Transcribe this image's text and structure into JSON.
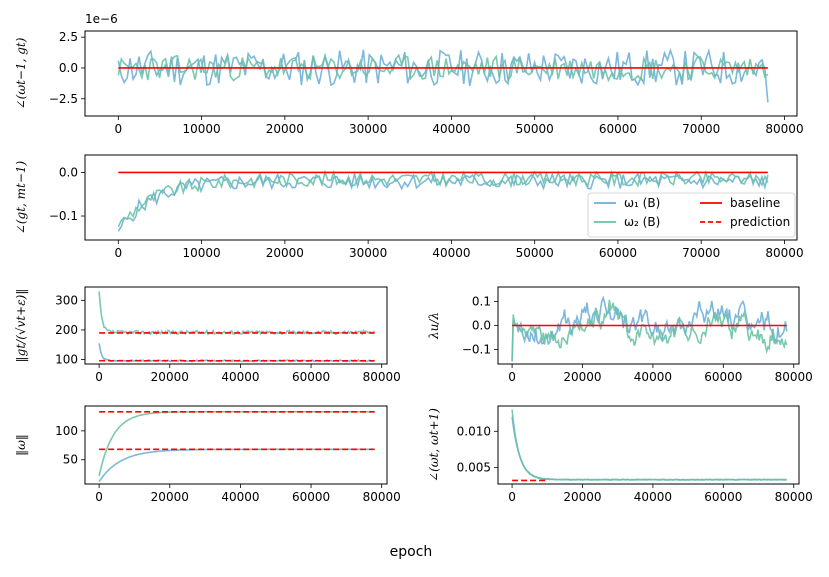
{
  "figure": {
    "xlabel": "epoch",
    "colors": {
      "omega1": "#6baed6",
      "omega2": "#66c2a4",
      "baseline": "#ff0000",
      "prediction": "#ff0000"
    }
  },
  "legend": [
    {
      "label": "ω₁ (B)",
      "style": "omega1"
    },
    {
      "label": "ω₂ (B)",
      "style": "omega2"
    },
    {
      "label": "baseline",
      "style": "baseline"
    },
    {
      "label": "prediction",
      "style": "prediction"
    }
  ],
  "chart_data": [
    {
      "id": "p1",
      "type": "line",
      "ylabel": "∠(ωt−1, gt)",
      "offset_text": "1e−6",
      "xlim": [
        -4000,
        81500
      ],
      "ylim": [
        -3.9,
        3.0
      ],
      "xticks": [
        0,
        10000,
        20000,
        30000,
        40000,
        50000,
        60000,
        70000,
        80000
      ],
      "yticks": [
        -2.5,
        0.0,
        2.5
      ],
      "ytick_labels": [
        "−2.5",
        "0.0",
        "2.5"
      ],
      "series": [
        {
          "name": "ω₁ (B)",
          "color": "omega1",
          "x_end": 78000,
          "start": 0.6,
          "end": -2.8,
          "level": 0.0,
          "noise": 1.15,
          "seed": 11
        },
        {
          "name": "ω₂ (B)",
          "color": "omega2",
          "x_end": 78000,
          "start": -0.6,
          "end": -0.5,
          "level": 0.0,
          "noise": 0.8,
          "seed": 23
        }
      ],
      "baseline": {
        "y": 0.0,
        "x": [
          0,
          78000
        ]
      }
    },
    {
      "id": "p2",
      "type": "line",
      "ylabel": "∠(gt, mt−1)",
      "xlim": [
        -4000,
        81500
      ],
      "ylim": [
        -0.155,
        0.04
      ],
      "xticks": [
        0,
        10000,
        20000,
        30000,
        40000,
        50000,
        60000,
        70000,
        80000
      ],
      "yticks": [
        -0.1,
        0.0
      ],
      "ytick_labels": [
        "−0.1",
        "0.0"
      ],
      "series": [
        {
          "name": "ω₁ (B)",
          "color": "omega1",
          "x_end": 78000,
          "start": -0.135,
          "transient": -0.09,
          "tau": 4000,
          "level": -0.02,
          "noise": 0.018,
          "seed": 5
        },
        {
          "name": "ω₂ (B)",
          "color": "omega2",
          "x_end": 78000,
          "start": -0.125,
          "transient": -0.08,
          "tau": 4500,
          "level": -0.015,
          "noise": 0.016,
          "seed": 9
        }
      ],
      "baseline": {
        "y": 0.0,
        "x": [
          0,
          78000
        ]
      }
    },
    {
      "id": "p3",
      "type": "line",
      "ylabel": "‖gt/(√vt+ε)‖",
      "xlim": [
        -4000,
        81500
      ],
      "ylim": [
        85,
        345
      ],
      "xticks": [
        0,
        20000,
        40000,
        60000,
        80000
      ],
      "yticks": [
        100,
        200,
        300
      ],
      "series": [
        {
          "name": "ω₁ (B)",
          "color": "omega1",
          "x_end": 78000,
          "start": 155,
          "transient": 60,
          "tau": 700,
          "level": 96,
          "noise": 2.5,
          "seed": 31
        },
        {
          "name": "ω₂ (B)",
          "color": "omega2",
          "x_end": 78000,
          "start": 330,
          "transient": 140,
          "tau": 700,
          "level": 192,
          "noise": 6,
          "seed": 37
        }
      ],
      "predictions": [
        {
          "y": 96,
          "x": [
            0,
            78000
          ]
        },
        {
          "y": 190,
          "x": [
            0,
            78000
          ]
        }
      ]
    },
    {
      "id": "p4",
      "type": "line",
      "ylabel": "λu/λ",
      "xlim": [
        -4000,
        81500
      ],
      "ylim": [
        -0.16,
        0.16
      ],
      "xticks": [
        0,
        20000,
        40000,
        60000,
        80000
      ],
      "yticks": [
        -0.1,
        0.0,
        0.1
      ],
      "ytick_labels": [
        "−0.1",
        "0.0",
        "0.1"
      ],
      "series": [
        {
          "name": "ω₁ (B)",
          "color": "omega1",
          "x_end": 78000,
          "start": -0.15,
          "level": 0.0,
          "noise": 0.05,
          "wave": 0.06,
          "seed": 41
        },
        {
          "name": "ω₂ (B)",
          "color": "omega2",
          "x_end": 78000,
          "start": -0.14,
          "level": 0.0,
          "noise": 0.04,
          "wave": 0.05,
          "seed": 47
        }
      ],
      "baseline": {
        "y": 0.0,
        "x": [
          0,
          78000
        ]
      }
    },
    {
      "id": "p5",
      "type": "line",
      "ylabel": "‖ω‖",
      "xlim": [
        -4000,
        81500
      ],
      "ylim": [
        8,
        143
      ],
      "xticks": [
        0,
        20000,
        40000,
        60000,
        80000
      ],
      "yticks": [
        50,
        100
      ],
      "series": [
        {
          "name": "ω₁ (B)",
          "color": "omega1",
          "x_end": 78000,
          "growth": true,
          "start": 12,
          "level": 68,
          "tau": 6000
        },
        {
          "name": "ω₂ (B)",
          "color": "omega2",
          "x_end": 78000,
          "growth": true,
          "start": 22,
          "level": 133,
          "tau": 4000
        }
      ],
      "predictions": [
        {
          "y": 68,
          "x": [
            0,
            78000
          ]
        },
        {
          "y": 133,
          "x": [
            0,
            78000
          ]
        }
      ]
    },
    {
      "id": "p6",
      "type": "line",
      "ylabel": "∠(ωt, ωt+1)",
      "xlim": [
        -4000,
        81500
      ],
      "ylim": [
        0.0027,
        0.0135
      ],
      "xticks": [
        0,
        20000,
        40000,
        60000,
        80000
      ],
      "yticks": [
        0.005,
        0.01
      ],
      "ytick_labels": [
        "0.005",
        "0.010"
      ],
      "series": [
        {
          "name": "ω₁ (B)",
          "color": "omega1",
          "x_end": 78000,
          "start": 0.012,
          "transient": 0.0087,
          "tau": 2200,
          "level": 0.0033,
          "noise": 4e-05,
          "seed": 53
        },
        {
          "name": "ω₂ (B)",
          "color": "omega2",
          "x_end": 78000,
          "start": 0.013,
          "transient": 0.0097,
          "tau": 2000,
          "level": 0.0033,
          "noise": 5e-05,
          "seed": 59
        }
      ],
      "predictions": [
        {
          "y": 0.0032,
          "x": [
            0,
            10000
          ]
        }
      ]
    }
  ]
}
